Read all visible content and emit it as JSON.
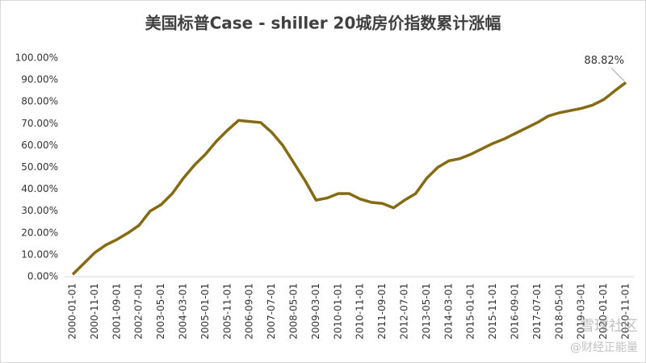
{
  "chart_data": {
    "type": "line",
    "title": "美国标普Case - shiller 20城房价指数累计涨幅",
    "categories": [
      "2000-01-01",
      null,
      "2000-11-01",
      null,
      "2001-09-01",
      null,
      "2002-07-01",
      null,
      "2003-05-01",
      null,
      "2004-03-01",
      null,
      "2005-01-01",
      null,
      "2005-11-01",
      null,
      "2006-09-01",
      null,
      "2007-07-01",
      null,
      "2008-05-01",
      null,
      "2009-03-01",
      null,
      "2010-01-01",
      null,
      "2010-11-01",
      null,
      "2011-09-01",
      null,
      "2012-07-01",
      null,
      "2013-05-01",
      null,
      "2014-03-01",
      null,
      "2015-01-01",
      null,
      "2015-11-01",
      null,
      "2016-09-01",
      null,
      "2017-07-01",
      null,
      "2018-05-01",
      null,
      "2019-03-01",
      null,
      "2020-01-01",
      null,
      "2020-11-01"
    ],
    "series": [
      {
        "name": "累计涨幅",
        "color": "#846a12",
        "values": [
          1,
          6,
          11,
          14.5,
          17,
          20,
          23.5,
          30,
          33,
          38,
          45,
          51,
          56,
          62,
          67,
          71.5,
          71,
          70.5,
          66,
          60,
          52,
          44,
          35,
          36,
          38,
          38,
          35.5,
          34,
          33.5,
          31.5,
          35,
          38,
          45,
          50,
          53,
          54,
          56,
          58.5,
          61,
          63,
          65.5,
          68,
          70.5,
          73.5,
          75,
          76,
          77,
          78.5,
          81,
          85,
          88.82
        ]
      }
    ],
    "annotation": "88.82%",
    "ylim": [
      0,
      100
    ],
    "yticks": [
      {
        "value": 0,
        "label": "0.00%"
      },
      {
        "value": 10,
        "label": "10.00%"
      },
      {
        "value": 20,
        "label": "20.00%"
      },
      {
        "value": 30,
        "label": "30.00%"
      },
      {
        "value": 40,
        "label": "40.00%"
      },
      {
        "value": 50,
        "label": "50.00%"
      },
      {
        "value": 60,
        "label": "60.00%"
      },
      {
        "value": 70,
        "label": "70.00%"
      },
      {
        "value": 80,
        "label": "80.00%"
      },
      {
        "value": 90,
        "label": "90.00%"
      },
      {
        "value": 100,
        "label": "100.00%"
      }
    ],
    "grid": false,
    "watermark": [
      "雪球社区",
      "@财经正能量"
    ]
  }
}
